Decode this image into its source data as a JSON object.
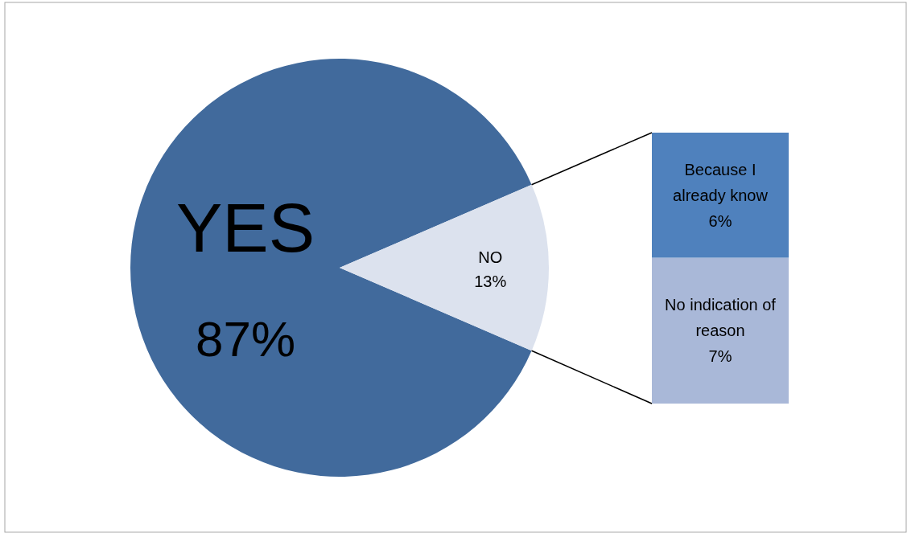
{
  "chart_data": [
    {
      "type": "pie",
      "categories": [
        "YES",
        "NO"
      ],
      "values": [
        87,
        13
      ],
      "colors": [
        "#416a9c",
        "#dce2ee"
      ],
      "value_labels": [
        "87%",
        "13%"
      ]
    },
    {
      "type": "bar",
      "stacked": true,
      "categories": [
        null
      ],
      "series": [
        {
          "name": "No indication of reason",
          "color": "#a9b8d8",
          "values": [
            7
          ],
          "value_labels": [
            "7%"
          ]
        },
        {
          "name": "Because I already know",
          "color": "#4f81bd",
          "values": [
            6
          ],
          "value_labels": [
            "6%"
          ]
        }
      ]
    }
  ]
}
